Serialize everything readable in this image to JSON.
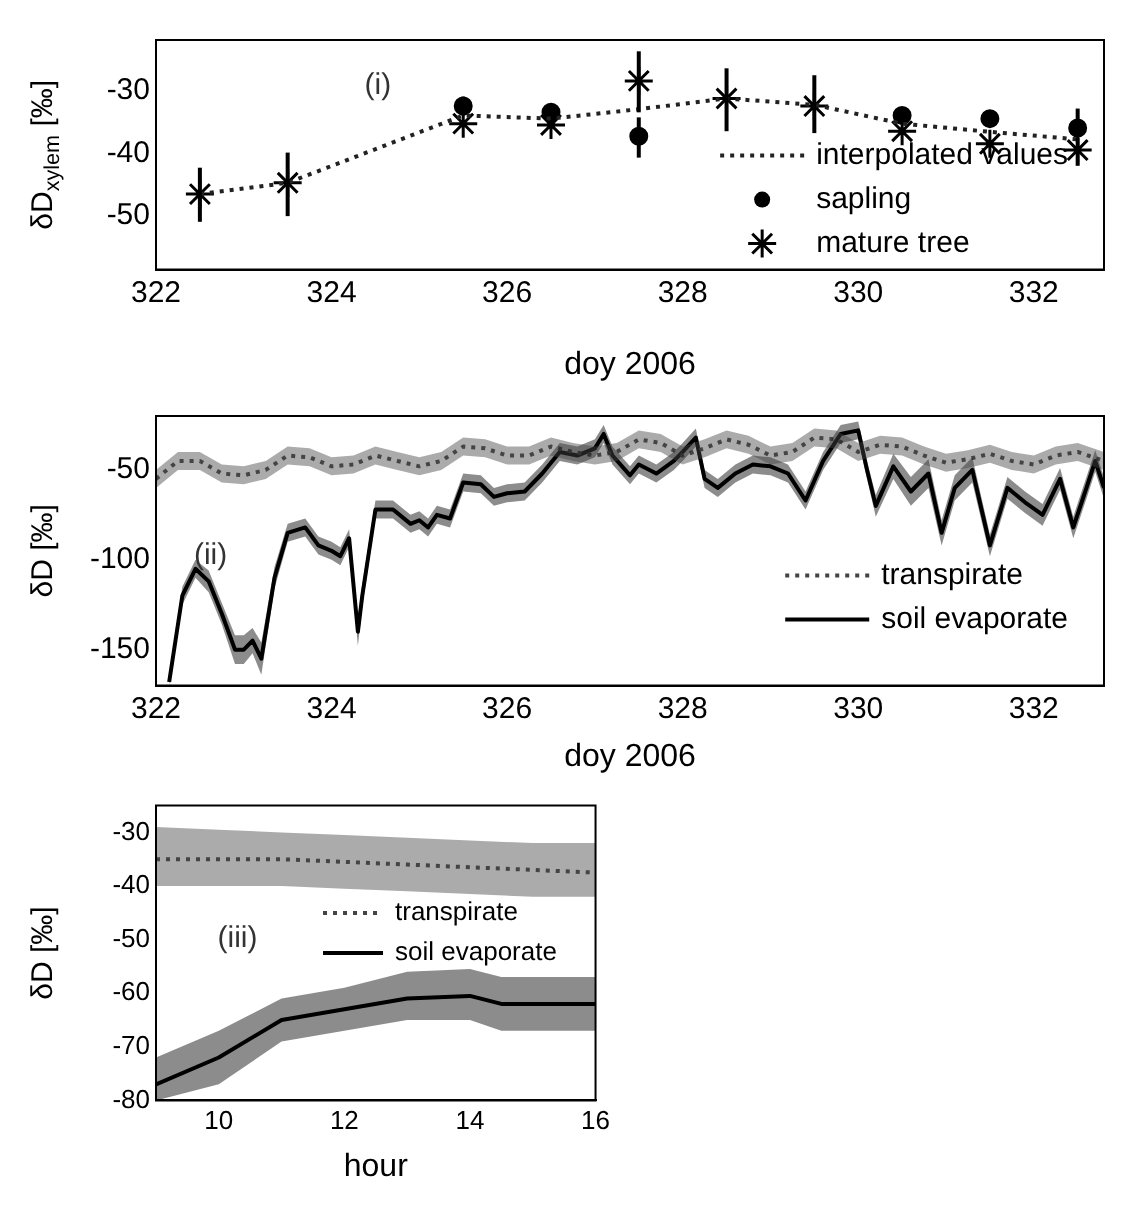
{
  "chart_data": [
    {
      "type": "line",
      "xlabel": "doy 2006",
      "ylabel": "δD$_{xylem}$ [‰]",
      "xlim": [
        322,
        332.8
      ],
      "xticks": [
        322,
        324,
        326,
        328,
        330,
        332
      ],
      "ylim": [
        -58.5,
        -22
      ],
      "yticks": [
        -50,
        -40,
        -30
      ],
      "legend": "bottom right",
      "annotations": [
        "(i)"
      ],
      "series": [
        {
          "name": "interpolated values",
          "type": "line",
          "color": "#222222",
          "line_style": "dotted",
          "marker": "none",
          "x": [
            322.5,
            323.5,
            325.5,
            326.5,
            327.5,
            328.5,
            329.5,
            330.5,
            331.5,
            332.5
          ],
          "values": [
            -46.5,
            -44.7,
            -34,
            -34.5,
            -33,
            -31.3,
            -32.3,
            -35.3,
            -36.6,
            -37.8
          ]
        },
        {
          "name": "sapling",
          "type": "scatter",
          "color": "#000000",
          "marker": "circle",
          "x": [
            325.5,
            326.5,
            327.5,
            330.5,
            331.5,
            332.5
          ],
          "values": [
            -32.5,
            -33.5,
            -37.3,
            -34,
            -34.5,
            -36
          ],
          "errors": [
            [
              -34,
              -31
            ],
            null,
            [
              -40.7,
              -34.3
            ],
            null,
            null,
            [
              -37,
              -32.9
            ]
          ]
        },
        {
          "name": "mature tree",
          "type": "scatter",
          "color": "#000000",
          "marker": "cross",
          "x": [
            322.5,
            323.5,
            325.5,
            326.5,
            327.5,
            328.5,
            329.5,
            330.5,
            331.5,
            332.5
          ],
          "values": [
            -46.5,
            -44.7,
            -35.3,
            -35.5,
            -28.5,
            -31.3,
            -32.5,
            -36.5,
            -38.5,
            -39.5
          ],
          "errors": [
            [
              -50.9,
              -42.3
            ],
            [
              -50,
              -39.9
            ],
            null,
            null,
            [
              -33.5,
              -23.8
            ],
            [
              -36.5,
              -26.5
            ],
            [
              -36.8,
              -27.6
            ],
            null,
            null,
            [
              -42,
              -37.5
            ]
          ]
        }
      ]
    },
    {
      "type": "line",
      "xlabel": "doy 2006",
      "ylabel": "δD [‰]",
      "xlim": [
        322,
        332.8
      ],
      "xticks": [
        322,
        324,
        326,
        328,
        330,
        332
      ],
      "ylim": [
        -170,
        -20
      ],
      "yticks": [
        -150,
        -100,
        -50
      ],
      "legend": "bottom right",
      "annotations": [
        "(ii)"
      ],
      "series": [
        {
          "name": "transpirate",
          "color": "#444444",
          "line_style": "dotted",
          "x": [
            322,
            322.25,
            322.5,
            322.75,
            323,
            323.25,
            323.5,
            323.75,
            324,
            324.25,
            324.5,
            324.75,
            325,
            325.25,
            325.5,
            325.75,
            326,
            326.25,
            326.5,
            326.75,
            327,
            327.25,
            327.5,
            327.75,
            328,
            328.25,
            328.5,
            328.75,
            329,
            329.25,
            329.5,
            329.75,
            330,
            330.25,
            330.5,
            330.75,
            331,
            331.25,
            331.5,
            331.75,
            332,
            332.25,
            332.5,
            332.8
          ],
          "values": [
            -55,
            -45,
            -45,
            -52,
            -53,
            -50,
            -42,
            -43,
            -48,
            -47,
            -42,
            -45,
            -48,
            -45,
            -37,
            -38,
            -42,
            -42,
            -37,
            -40,
            -42,
            -40,
            -33,
            -35,
            -42,
            -38,
            -33,
            -36,
            -42,
            -40,
            -32,
            -33,
            -40,
            -36,
            -37,
            -42,
            -46,
            -44,
            -41,
            -45,
            -47,
            -42,
            -40,
            -45
          ],
          "lower": [
            -60,
            -50,
            -50,
            -57,
            -58,
            -55,
            -47,
            -48,
            -53,
            -52,
            -47,
            -50,
            -53,
            -50,
            -42,
            -43,
            -47,
            -47,
            -42,
            -45,
            -47,
            -45,
            -38,
            -40,
            -47,
            -43,
            -38,
            -41,
            -47,
            -45,
            -37,
            -38,
            -45,
            -41,
            -42,
            -47,
            -51,
            -49,
            -46,
            -50,
            -52,
            -47,
            -45,
            -50
          ],
          "upper": [
            -50,
            -40,
            -40,
            -47,
            -48,
            -45,
            -37,
            -38,
            -43,
            -42,
            -37,
            -40,
            -43,
            -40,
            -32,
            -33,
            -37,
            -37,
            -32,
            -35,
            -37,
            -35,
            -28,
            -30,
            -37,
            -33,
            -28,
            -31,
            -37,
            -35,
            -27,
            -28,
            -35,
            -31,
            -32,
            -37,
            -41,
            -39,
            -36,
            -40,
            -42,
            -37,
            -35,
            -40
          ]
        },
        {
          "name": "soil evaporate",
          "color": "#000000",
          "line_style": "solid",
          "x": [
            322.15,
            322.3,
            322.45,
            322.6,
            322.75,
            322.9,
            323,
            323.1,
            323.2,
            323.35,
            323.5,
            323.7,
            323.85,
            324,
            324.1,
            324.2,
            324.3,
            324.35,
            324.5,
            324.7,
            324.9,
            325,
            325.1,
            325.2,
            325.35,
            325.5,
            325.7,
            325.85,
            326,
            326.2,
            326.4,
            326.6,
            326.8,
            327,
            327.1,
            327.2,
            327.4,
            327.5,
            327.7,
            327.9,
            328,
            328.15,
            328.25,
            328.4,
            328.6,
            328.8,
            329,
            329.2,
            329.4,
            329.6,
            329.8,
            330,
            330.1,
            330.2,
            330.4,
            330.6,
            330.8,
            330.95,
            331.1,
            331.3,
            331.5,
            331.7,
            331.9,
            332.1,
            332.3,
            332.45,
            332.6,
            332.7,
            332.8
          ],
          "values": [
            -168,
            -120,
            -105,
            -112,
            -130,
            -150,
            -150,
            -145,
            -155,
            -110,
            -85,
            -82,
            -92,
            -95,
            -98,
            -88,
            -140,
            -120,
            -72,
            -72,
            -80,
            -78,
            -82,
            -75,
            -77,
            -57,
            -58,
            -65,
            -63,
            -62,
            -52,
            -40,
            -42,
            -38,
            -30,
            -42,
            -53,
            -47,
            -52,
            -45,
            -40,
            -32,
            -55,
            -60,
            -52,
            -47,
            -48,
            -52,
            -67,
            -45,
            -30,
            -28,
            -50,
            -70,
            -48,
            -62,
            -52,
            -85,
            -60,
            -50,
            -92,
            -60,
            -68,
            -75,
            -55,
            -82,
            -60,
            -45,
            -60
          ],
          "lower": [
            -170,
            -125,
            -110,
            -118,
            -136,
            -158,
            -158,
            -152,
            -164,
            -116,
            -90,
            -87,
            -97,
            -100,
            -103,
            -93,
            -148,
            -126,
            -77,
            -77,
            -85,
            -83,
            -87,
            -80,
            -82,
            -62,
            -63,
            -70,
            -68,
            -67,
            -57,
            -45,
            -47,
            -43,
            -35,
            -47,
            -58,
            -52,
            -57,
            -50,
            -45,
            -37,
            -60,
            -65,
            -57,
            -52,
            -53,
            -57,
            -72,
            -50,
            -35,
            -33,
            -55,
            -76,
            -55,
            -70,
            -60,
            -92,
            -67,
            -57,
            -98,
            -66,
            -74,
            -81,
            -61,
            -88,
            -66,
            -51,
            -66
          ],
          "upper": [
            -164,
            -115,
            -100,
            -106,
            -124,
            -142,
            -142,
            -138,
            -146,
            -104,
            -80,
            -77,
            -87,
            -90,
            -93,
            -83,
            -132,
            -114,
            -67,
            -67,
            -75,
            -73,
            -77,
            -70,
            -72,
            -52,
            -53,
            -60,
            -58,
            -57,
            -47,
            -35,
            -37,
            -33,
            -25,
            -37,
            -48,
            -42,
            -47,
            -40,
            -35,
            -27,
            -50,
            -55,
            -47,
            -42,
            -43,
            -47,
            -62,
            -40,
            -25,
            -23,
            -45,
            -64,
            -41,
            -54,
            -44,
            -78,
            -53,
            -43,
            -86,
            -54,
            -62,
            -69,
            -49,
            -76,
            -54,
            -39,
            -54
          ]
        }
      ]
    },
    {
      "type": "line",
      "xlabel": "hour",
      "ylabel": "δD [‰]",
      "xlim": [
        9,
        16
      ],
      "xticks": [
        10,
        12,
        14,
        16
      ],
      "ylim": [
        -80,
        -25
      ],
      "yticks": [
        -80,
        -70,
        -60,
        -50,
        -40,
        -30
      ],
      "legend": "center",
      "annotations": [
        "(iii)"
      ],
      "series": [
        {
          "name": "transpirate",
          "color": "#444444",
          "line_style": "dotted",
          "x": [
            9,
            10,
            11,
            12,
            13,
            14,
            15,
            16
          ],
          "values": [
            -35,
            -35,
            -35,
            -35.5,
            -36,
            -36.5,
            -37,
            -37.5
          ],
          "lower": [
            -40,
            -40,
            -40,
            -40.5,
            -41,
            -41.5,
            -42,
            -42
          ],
          "upper": [
            -29,
            -29.5,
            -30,
            -30.5,
            -31,
            -31.5,
            -32,
            -32
          ]
        },
        {
          "name": "soil evaporate",
          "color": "#000000",
          "line_style": "solid",
          "x": [
            9,
            10,
            11,
            12,
            13,
            14,
            14.5,
            15,
            16
          ],
          "values": [
            -77,
            -72,
            -65,
            -63,
            -61,
            -60.5,
            -62,
            -62,
            -62
          ],
          "lower": [
            -80,
            -77,
            -69,
            -67,
            -65,
            -65,
            -67,
            -67,
            -67
          ],
          "upper": [
            -72,
            -67,
            -61,
            -59,
            -56,
            -55.5,
            -57,
            -57,
            -57
          ]
        }
      ]
    }
  ]
}
